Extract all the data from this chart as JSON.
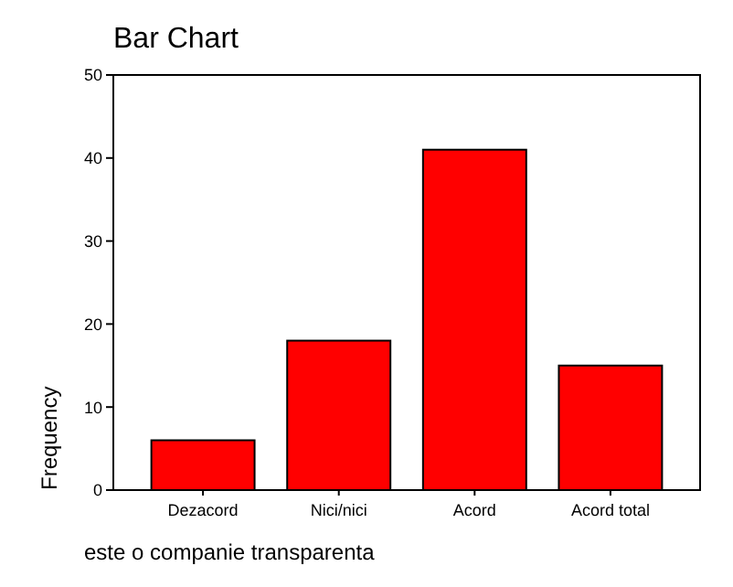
{
  "chart_data": {
    "type": "bar",
    "title": "Bar Chart",
    "xlabel": "este o companie transparenta",
    "ylabel": "Frequency",
    "categories": [
      "Dezacord",
      "Nici/nici",
      "Acord",
      "Acord total"
    ],
    "values": [
      6,
      18,
      41,
      15
    ],
    "color": "#ff0000",
    "ylim": [
      0,
      50
    ],
    "yticks": [
      0,
      10,
      20,
      30,
      40,
      50
    ],
    "grid": false
  }
}
